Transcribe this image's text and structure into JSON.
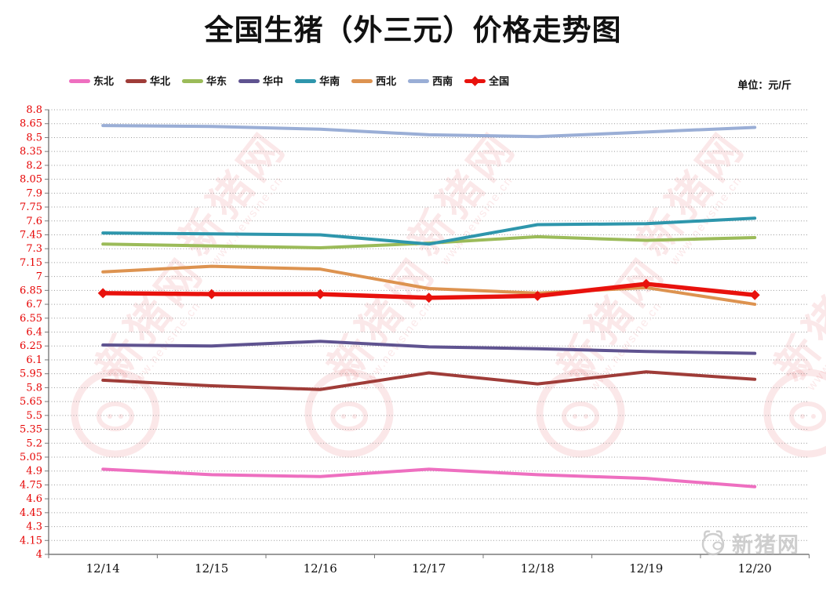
{
  "page": {
    "background": "#ffffff"
  },
  "chart_data": {
    "type": "line",
    "title": "全国生猪（外三元）价格走势图",
    "unit_label": "单位：元/斤",
    "xlabel": "",
    "ylabel": "",
    "x": [
      "12/14",
      "12/15",
      "12/16",
      "12/17",
      "12/18",
      "12/19",
      "12/20"
    ],
    "ylim": [
      4,
      8.8
    ],
    "ytick_step": 0.15,
    "grid": true,
    "legend_position": "top",
    "series": [
      {
        "name": "东北",
        "color": "#ee6fc0",
        "values": [
          4.92,
          4.86,
          4.84,
          4.92,
          4.86,
          4.82,
          4.73
        ]
      },
      {
        "name": "华北",
        "color": "#9f3c38",
        "values": [
          5.88,
          5.82,
          5.78,
          5.96,
          5.84,
          5.97,
          5.89
        ]
      },
      {
        "name": "华东",
        "color": "#9bbb59",
        "values": [
          7.35,
          7.33,
          7.31,
          7.36,
          7.43,
          7.39,
          7.42
        ]
      },
      {
        "name": "华中",
        "color": "#5f5390",
        "values": [
          6.26,
          6.25,
          6.3,
          6.24,
          6.22,
          6.19,
          6.17
        ]
      },
      {
        "name": "华南",
        "color": "#2e96ac",
        "values": [
          7.47,
          7.46,
          7.45,
          7.35,
          7.56,
          7.57,
          7.63
        ]
      },
      {
        "name": "西北",
        "color": "#dd9350",
        "values": [
          7.05,
          7.11,
          7.08,
          6.87,
          6.82,
          6.88,
          6.7
        ]
      },
      {
        "name": "西南",
        "color": "#9aaed6",
        "values": [
          8.63,
          8.62,
          8.59,
          8.53,
          8.51,
          8.56,
          8.61
        ]
      },
      {
        "name": "全国",
        "color": "#e8120d",
        "marker": "diamond",
        "values": [
          6.82,
          6.81,
          6.81,
          6.77,
          6.79,
          6.92,
          6.8
        ]
      }
    ]
  },
  "watermark": {
    "brand_text": "新猪网",
    "url_text": "www.newsine.cn",
    "footer_logo_text": "新猪网"
  },
  "colors": {
    "title": "#111111",
    "y_axis_labels": "#e60000",
    "x_axis_labels": "#111111",
    "gridline": "#9a9a9a",
    "axis": "#7a7a7a",
    "watermark": "#e14b55"
  }
}
